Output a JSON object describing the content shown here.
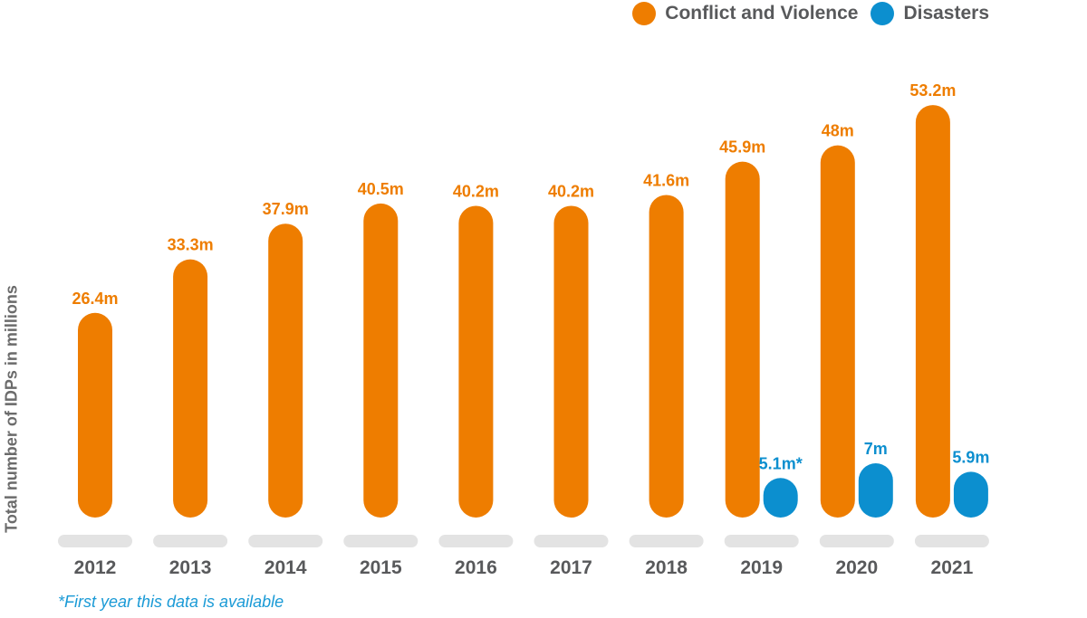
{
  "chart_data": {
    "type": "bar",
    "title": "",
    "xlabel": "",
    "ylabel": "Total number of IDPs in millions",
    "categories": [
      "2012",
      "2013",
      "2014",
      "2015",
      "2016",
      "2017",
      "2018",
      "2019",
      "2020",
      "2021"
    ],
    "series": [
      {
        "name": "Conflict and Violence",
        "color": "#ee7d00",
        "values": [
          26.4,
          33.3,
          37.9,
          40.5,
          40.2,
          40.2,
          41.6,
          45.9,
          48,
          53.2
        ],
        "labels": [
          "26.4m",
          "33.3m",
          "37.9m",
          "40.5m",
          "40.2m",
          "40.2m",
          "41.6m",
          "45.9m",
          "48m",
          "53.2m"
        ]
      },
      {
        "name": "Disasters",
        "color": "#0c8fcf",
        "values": [
          null,
          null,
          null,
          null,
          null,
          null,
          null,
          5.1,
          7,
          5.9
        ],
        "labels": [
          null,
          null,
          null,
          null,
          null,
          null,
          null,
          "5.1m*",
          "7m",
          "5.9m"
        ]
      }
    ],
    "ylim": [
      0,
      55
    ],
    "grid": false,
    "legend_position": "top-right",
    "footnote": "*First year this data is available"
  }
}
